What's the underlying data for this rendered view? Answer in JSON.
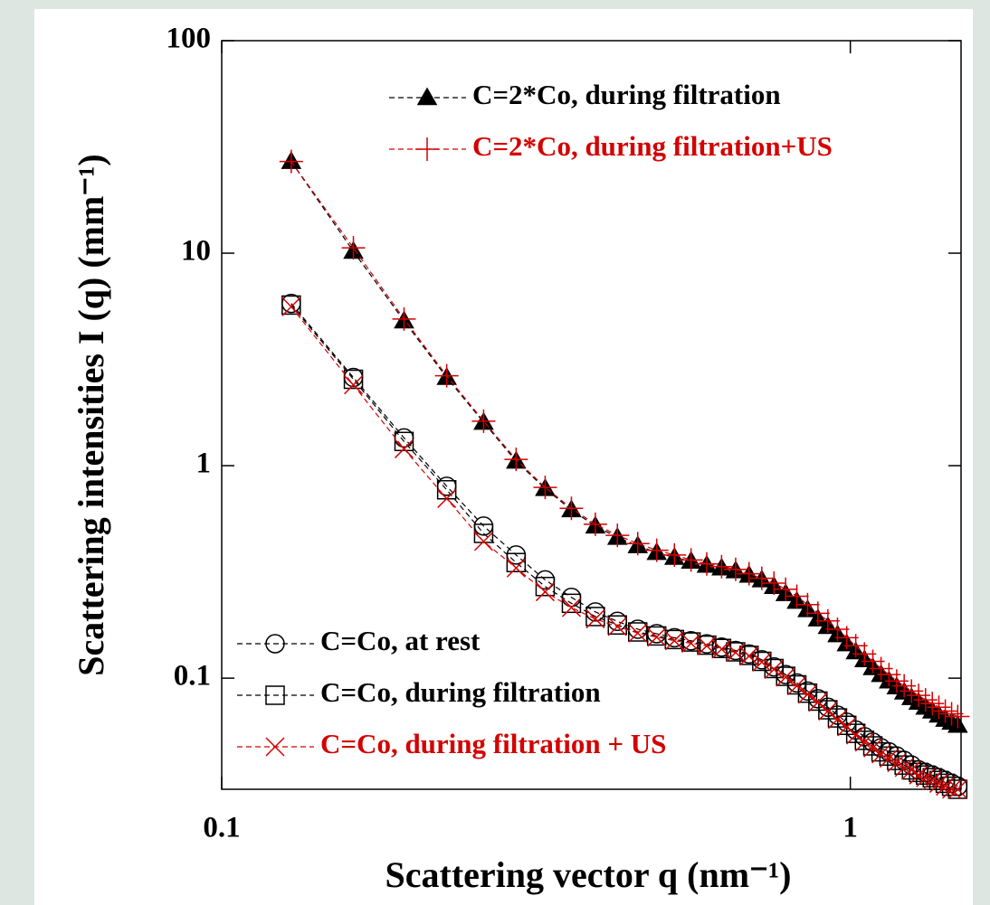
{
  "chart_data": {
    "type": "scatter",
    "xlabel": "Scattering vector q (nm⁻¹)",
    "ylabel": "Scattering intensities I (q) (mm⁻¹)",
    "xscale": "log",
    "yscale": "log",
    "xlim": [
      0.1,
      1.5
    ],
    "ylim": [
      0.03,
      100
    ],
    "xticks": [
      0.1,
      1
    ],
    "yticks": [
      0.1,
      1,
      10,
      100
    ],
    "x": [
      0.129,
      0.162,
      0.195,
      0.228,
      0.261,
      0.294,
      0.327,
      0.36,
      0.393,
      0.426,
      0.459,
      0.492,
      0.525,
      0.558,
      0.591,
      0.624,
      0.657,
      0.69,
      0.723,
      0.756,
      0.789,
      0.822,
      0.855,
      0.888,
      0.921,
      0.954,
      0.987,
      1.02,
      1.053,
      1.086,
      1.119,
      1.152,
      1.185,
      1.218,
      1.251,
      1.284,
      1.317,
      1.35,
      1.383,
      1.416,
      1.449,
      1.482
    ],
    "series": [
      {
        "name": "C=2*Co, during filtration",
        "color": "#000000",
        "marker": "triangle",
        "legend": "upper right",
        "values": [
          27,
          10.2,
          4.8,
          2.6,
          1.6,
          1.05,
          0.78,
          0.62,
          0.52,
          0.46,
          0.42,
          0.39,
          0.37,
          0.355,
          0.34,
          0.33,
          0.32,
          0.305,
          0.29,
          0.27,
          0.25,
          0.23,
          0.21,
          0.19,
          0.175,
          0.16,
          0.145,
          0.133,
          0.122,
          0.112,
          0.104,
          0.097,
          0.091,
          0.086,
          0.081,
          0.077,
          0.073,
          0.07,
          0.067,
          0.064,
          0.062,
          0.06
        ]
      },
      {
        "name": "C=2*Co, during filtration+US",
        "color": "#d40000",
        "marker": "plus",
        "legend": "upper right",
        "values": [
          27,
          10.6,
          4.9,
          2.65,
          1.62,
          1.07,
          0.79,
          0.63,
          0.53,
          0.47,
          0.43,
          0.4,
          0.38,
          0.36,
          0.345,
          0.335,
          0.325,
          0.31,
          0.295,
          0.28,
          0.262,
          0.243,
          0.222,
          0.202,
          0.186,
          0.17,
          0.155,
          0.142,
          0.13,
          0.12,
          0.111,
          0.104,
          0.097,
          0.092,
          0.087,
          0.083,
          0.079,
          0.076,
          0.073,
          0.07,
          0.068,
          0.066
        ]
      },
      {
        "name": "C=Co, at rest",
        "color": "#000000",
        "marker": "circle",
        "legend": "lower left",
        "values": [
          5.8,
          2.6,
          1.35,
          0.8,
          0.52,
          0.38,
          0.29,
          0.24,
          0.205,
          0.185,
          0.17,
          0.162,
          0.155,
          0.15,
          0.145,
          0.14,
          0.135,
          0.13,
          0.122,
          0.113,
          0.104,
          0.095,
          0.087,
          0.08,
          0.073,
          0.067,
          0.062,
          0.057,
          0.053,
          0.05,
          0.047,
          0.045,
          0.043,
          0.041,
          0.039,
          0.037,
          0.036,
          0.035,
          0.034,
          0.033,
          0.032,
          0.031
        ]
      },
      {
        "name": "C=Co, during filtration",
        "color": "#000000",
        "marker": "square",
        "legend": "lower left",
        "values": [
          5.7,
          2.55,
          1.3,
          0.77,
          0.48,
          0.35,
          0.27,
          0.225,
          0.195,
          0.178,
          0.165,
          0.158,
          0.152,
          0.148,
          0.143,
          0.138,
          0.133,
          0.128,
          0.12,
          0.111,
          0.102,
          0.093,
          0.085,
          0.078,
          0.071,
          0.065,
          0.06,
          0.055,
          0.051,
          0.048,
          0.045,
          0.043,
          0.041,
          0.039,
          0.037,
          0.036,
          0.035,
          0.034,
          0.033,
          0.032,
          0.031,
          0.03
        ]
      },
      {
        "name": "C=Co, during filtration + US",
        "color": "#d40000",
        "marker": "x",
        "legend": "lower left",
        "values": [
          5.6,
          2.4,
          1.2,
          0.7,
          0.44,
          0.33,
          0.255,
          0.215,
          0.19,
          0.175,
          0.163,
          0.156,
          0.15,
          0.146,
          0.142,
          0.137,
          0.132,
          0.127,
          0.119,
          0.11,
          0.101,
          0.092,
          0.084,
          0.077,
          0.07,
          0.064,
          0.059,
          0.054,
          0.05,
          0.047,
          0.044,
          0.042,
          0.04,
          0.038,
          0.037,
          0.035,
          0.034,
          0.033,
          0.032,
          0.031,
          0.03,
          0.03
        ]
      }
    ]
  }
}
